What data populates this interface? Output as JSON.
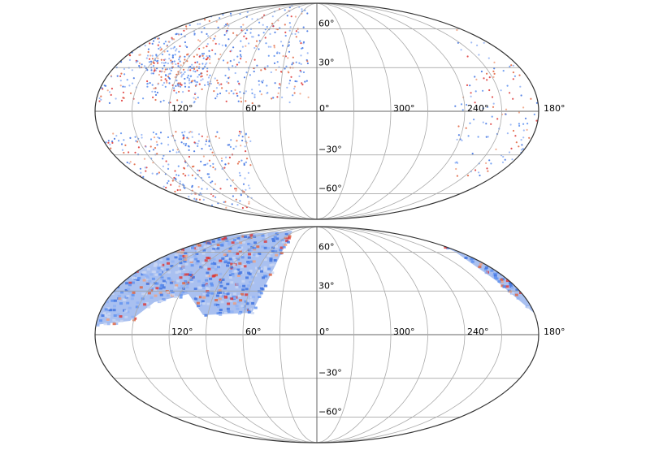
{
  "maps": [
    {
      "longitude_labels": [
        "120°",
        "60°",
        "0°",
        "300°",
        "240°",
        "180°"
      ],
      "latitude_labels": [
        "60°",
        "30°",
        "−30°",
        "−60°"
      ]
    },
    {
      "longitude_labels": [
        "120°",
        "60°",
        "0°",
        "300°",
        "240°",
        "180°"
      ],
      "latitude_labels": [
        "60°",
        "30°",
        "−30°",
        "−60°"
      ]
    }
  ]
}
